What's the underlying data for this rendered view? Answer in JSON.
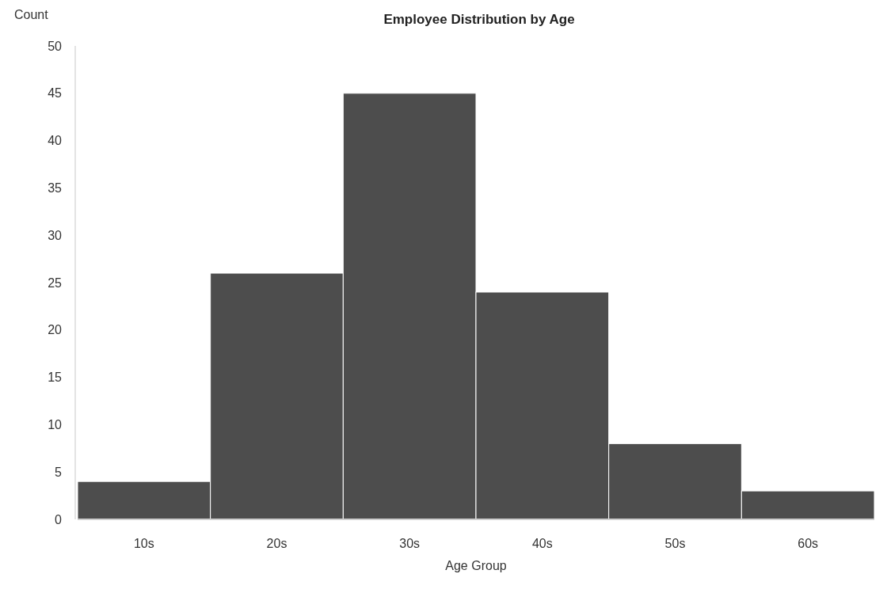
{
  "chart_data": {
    "type": "bar",
    "title": "Employee Distribution by Age",
    "xlabel": "Age Group",
    "ylabel": "Count",
    "categories": [
      "10s",
      "20s",
      "30s",
      "40s",
      "50s",
      "60s"
    ],
    "values": [
      4,
      26,
      45,
      24,
      8,
      3
    ],
    "color": "#4d4d4d",
    "ylim": [
      0,
      50
    ],
    "yticks": [
      0,
      5,
      10,
      15,
      20,
      25,
      30,
      35,
      40,
      45,
      50
    ],
    "grid": false
  }
}
